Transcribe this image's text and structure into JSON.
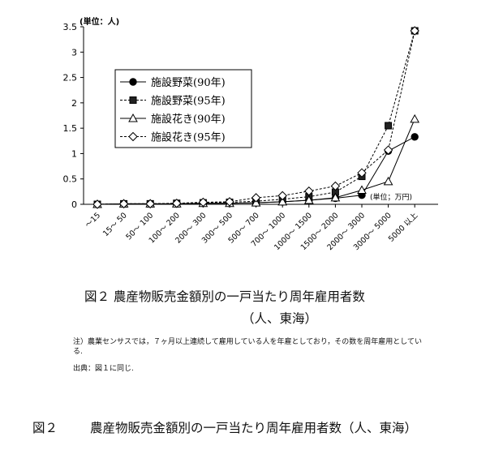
{
  "chart_data": {
    "type": "line",
    "unit_label_y": "(単位：人)",
    "unit_label_x": "(単位；万円)",
    "categories": [
      "～15",
      "15～ 50",
      "50～ 100",
      "100～ 200",
      "200～ 300",
      "300～ 500",
      "500～ 700",
      "700～ 1000",
      "1000～ 1500",
      "1500～ 2000",
      "2000～ 3000",
      "3000～ 5000",
      "5000 以上"
    ],
    "yticks": [
      "0",
      "0.5",
      "1",
      "1.5",
      "2",
      "2.5",
      "3",
      "3.5"
    ],
    "ylim": [
      0,
      3.5
    ],
    "legend_position": "upper-left",
    "grid": false,
    "series": [
      {
        "name": "施設野菜(90年)",
        "marker": "filled-circle",
        "values": [
          0,
          0.01,
          0.01,
          0.01,
          0.02,
          0.02,
          0.03,
          0.05,
          0.08,
          0.12,
          0.18,
          1.05,
          1.33
        ]
      },
      {
        "name": "施設野菜(95年)",
        "marker": "filled-square",
        "values": [
          0,
          0.01,
          0.01,
          0.02,
          0.03,
          0.04,
          0.06,
          0.1,
          0.15,
          0.24,
          0.55,
          1.55,
          3.42
        ]
      },
      {
        "name": "施設花き(90年)",
        "marker": "open-triangle",
        "values": [
          0,
          0.01,
          0.01,
          0.01,
          0.02,
          0.02,
          0.03,
          0.05,
          0.08,
          0.13,
          0.28,
          0.45,
          1.68
        ]
      },
      {
        "name": "施設花き(95年)",
        "marker": "open-diamond",
        "values": [
          0,
          0.01,
          0.01,
          0.02,
          0.04,
          0.05,
          0.13,
          0.17,
          0.26,
          0.36,
          0.62,
          1.07,
          3.42
        ]
      }
    ]
  },
  "caption": {
    "main": "図２ 農産物販売金額別の一戸当たり周年雇用者数",
    "sub": "（人、東海）"
  },
  "note": "注）農業センサスでは，７ヶ月以上連続して雇用している人を年雇としており，その数を周年雇用としている.",
  "source": "出典：図１に同じ.",
  "bottom_caption": {
    "number": "図２",
    "text": "農産物販売金額別の一戸当たり周年雇用者数（人、東海）"
  }
}
